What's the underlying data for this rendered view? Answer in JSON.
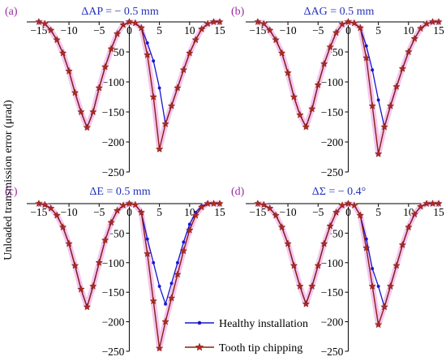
{
  "colors": {
    "healthy": "#1515d0",
    "chipped": "#8b1e12",
    "star": "#b02a1c",
    "halo": "#f4c6ef",
    "title": "#2233bb",
    "panel_label": "#9a2aa0"
  },
  "figure": {
    "ylabel": "Unloaded transmission error (μrad)"
  },
  "legend": {
    "healthy": "Healthy installation",
    "chipped": "Tooth tip chipping",
    "placement": "bottom-center of panel (d)"
  },
  "chart_data": [
    {
      "type": "line",
      "panel": "(a)",
      "title": "ΔAP = − 0.5 mm",
      "xlim": [
        -17,
        15
      ],
      "ylim": [
        -250,
        0
      ],
      "xticks": [
        -15,
        -10,
        -5,
        0,
        5,
        10,
        15
      ],
      "yticks": [
        -50,
        -100,
        -150,
        -200,
        -250
      ],
      "x_axis_position": "top",
      "series": [
        {
          "name": "Healthy installation",
          "x": [
            -15,
            -14,
            -13,
            -12,
            -11,
            -10,
            -9,
            -8,
            -7,
            -6,
            -5,
            -4,
            -3,
            -2,
            -1,
            0,
            1,
            2,
            3,
            4,
            5,
            6,
            7,
            8,
            9,
            10,
            11,
            12,
            13,
            14,
            15
          ],
          "y": [
            0,
            -3,
            -14,
            -30,
            -52,
            -82,
            -118,
            -150,
            -176,
            -150,
            -110,
            -75,
            -45,
            -20,
            -5,
            0,
            -2,
            -10,
            -35,
            -65,
            -110,
            -170,
            -140,
            -110,
            -80,
            -52,
            -30,
            -12,
            -3,
            0,
            0
          ]
        },
        {
          "name": "Tooth tip chipping",
          "x": [
            -15,
            -14,
            -13,
            -12,
            -11,
            -10,
            -9,
            -8,
            -7,
            -6,
            -5,
            -4,
            -3,
            -2,
            -1,
            0,
            1,
            2,
            3,
            4,
            5,
            6,
            7,
            8,
            9,
            10,
            11,
            12,
            13,
            14,
            15
          ],
          "y": [
            0,
            -3,
            -14,
            -30,
            -52,
            -82,
            -118,
            -150,
            -176,
            -150,
            -110,
            -75,
            -45,
            -20,
            -5,
            0,
            -2,
            -10,
            -55,
            -125,
            -212,
            -170,
            -140,
            -110,
            -80,
            -52,
            -30,
            -12,
            -3,
            0,
            0
          ]
        }
      ]
    },
    {
      "type": "line",
      "panel": "(b)",
      "title": "ΔAG = 0.5 mm",
      "xlim": [
        -17,
        15
      ],
      "ylim": [
        -250,
        0
      ],
      "xticks": [
        -15,
        -10,
        -5,
        0,
        5,
        10,
        15
      ],
      "yticks": [
        -50,
        -100,
        -150,
        -200,
        -250
      ],
      "x_axis_position": "top",
      "series": [
        {
          "name": "Healthy installation",
          "x": [
            -15,
            -14,
            -13,
            -12,
            -11,
            -10,
            -9,
            -8,
            -7,
            -6,
            -5,
            -4,
            -3,
            -2,
            -1,
            0,
            1,
            2,
            3,
            4,
            5,
            6,
            7,
            8,
            9,
            10,
            11,
            12,
            13,
            14,
            15
          ],
          "y": [
            0,
            -3,
            -14,
            -30,
            -52,
            -85,
            -125,
            -155,
            -175,
            -145,
            -105,
            -70,
            -42,
            -18,
            -4,
            0,
            -2,
            -10,
            -40,
            -80,
            -130,
            -175,
            -140,
            -108,
            -78,
            -50,
            -28,
            -11,
            -3,
            0,
            0
          ]
        },
        {
          "name": "Tooth tip chipping",
          "x": [
            -15,
            -14,
            -13,
            -12,
            -11,
            -10,
            -9,
            -8,
            -7,
            -6,
            -5,
            -4,
            -3,
            -2,
            -1,
            0,
            1,
            2,
            3,
            4,
            5,
            6,
            7,
            8,
            9,
            10,
            11,
            12,
            13,
            14,
            15
          ],
          "y": [
            0,
            -3,
            -14,
            -30,
            -52,
            -85,
            -125,
            -155,
            -175,
            -145,
            -105,
            -70,
            -42,
            -18,
            -4,
            0,
            -2,
            -10,
            -60,
            -140,
            -220,
            -175,
            -140,
            -108,
            -78,
            -50,
            -28,
            -11,
            -3,
            0,
            0
          ]
        }
      ]
    },
    {
      "type": "line",
      "panel": "(c)",
      "title": "ΔE = 0.5 mm",
      "xlim": [
        -17,
        15
      ],
      "ylim": [
        -250,
        0
      ],
      "xticks": [
        -15,
        -10,
        -5,
        0,
        5,
        10,
        15
      ],
      "yticks": [
        -50,
        -100,
        -150,
        -200,
        -250
      ],
      "x_axis_position": "top",
      "series": [
        {
          "name": "Healthy installation",
          "x": [
            -15,
            -14,
            -13,
            -12,
            -11,
            -10,
            -9,
            -8,
            -7,
            -6,
            -5,
            -4,
            -3,
            -2,
            -1,
            0,
            1,
            2,
            3,
            4,
            5,
            6,
            7,
            8,
            9,
            10,
            11,
            12,
            13,
            14,
            15
          ],
          "y": [
            0,
            -2,
            -8,
            -20,
            -40,
            -68,
            -105,
            -145,
            -175,
            -140,
            -100,
            -62,
            -32,
            -12,
            -3,
            0,
            -2,
            -15,
            -60,
            -100,
            -140,
            -170,
            -135,
            -100,
            -65,
            -35,
            -15,
            -4,
            0,
            0,
            0
          ]
        },
        {
          "name": "Tooth tip chipping",
          "x": [
            -15,
            -14,
            -13,
            -12,
            -11,
            -10,
            -9,
            -8,
            -7,
            -6,
            -5,
            -4,
            -3,
            -2,
            -1,
            0,
            1,
            2,
            3,
            4,
            5,
            6,
            7,
            8,
            9,
            10,
            11,
            12,
            13,
            14,
            15
          ],
          "y": [
            0,
            -2,
            -8,
            -20,
            -40,
            -68,
            -105,
            -145,
            -175,
            -140,
            -100,
            -62,
            -32,
            -12,
            -3,
            0,
            -2,
            -15,
            -85,
            -165,
            -245,
            -200,
            -160,
            -120,
            -80,
            -45,
            -20,
            -6,
            0,
            0,
            0
          ]
        }
      ]
    },
    {
      "type": "line",
      "panel": "(d)",
      "title": "ΔΣ = − 0.4°",
      "xlim": [
        -17,
        15
      ],
      "ylim": [
        -250,
        0
      ],
      "xticks": [
        -15,
        -10,
        -5,
        0,
        5,
        10,
        15
      ],
      "yticks": [
        -50,
        -100,
        -150,
        -200,
        -250
      ],
      "x_axis_position": "top",
      "series": [
        {
          "name": "Healthy installation",
          "x": [
            -15,
            -14,
            -13,
            -12,
            -11,
            -10,
            -9,
            -8,
            -7,
            -6,
            -5,
            -4,
            -3,
            -2,
            -1,
            0,
            1,
            2,
            3,
            4,
            5,
            6,
            7,
            8,
            9,
            10,
            11,
            12,
            13,
            14,
            15
          ],
          "y": [
            0,
            -2,
            -8,
            -20,
            -40,
            -68,
            -105,
            -140,
            -170,
            -140,
            -105,
            -68,
            -38,
            -15,
            -3,
            0,
            -3,
            -20,
            -60,
            -110,
            -140,
            -175,
            -140,
            -105,
            -70,
            -40,
            -18,
            -5,
            0,
            0,
            0
          ]
        },
        {
          "name": "Tooth tip chipping",
          "x": [
            -15,
            -14,
            -13,
            -12,
            -11,
            -10,
            -9,
            -8,
            -7,
            -6,
            -5,
            -4,
            -3,
            -2,
            -1,
            0,
            1,
            2,
            3,
            4,
            5,
            6,
            7,
            8,
            9,
            10,
            11,
            12,
            13,
            14,
            15
          ],
          "y": [
            0,
            -2,
            -8,
            -20,
            -40,
            -68,
            -105,
            -140,
            -170,
            -140,
            -105,
            -68,
            -38,
            -15,
            -3,
            0,
            -3,
            -20,
            -75,
            -140,
            -205,
            -175,
            -140,
            -105,
            -70,
            -40,
            -18,
            -5,
            0,
            0,
            0
          ]
        }
      ]
    }
  ]
}
